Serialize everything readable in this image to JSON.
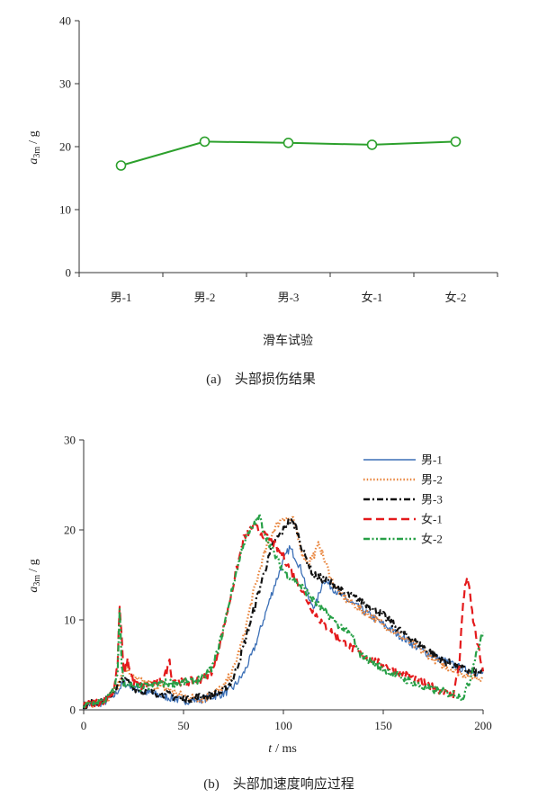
{
  "chart_data": [
    {
      "type": "line",
      "caption": "(a)　头部损伤结果",
      "xlabel": "滑车试验",
      "ylabel_main": "a",
      "ylabel_sub": "3m",
      "ylabel_unit": "/ g",
      "categories": [
        "男-1",
        "男-2",
        "男-3",
        "女-1",
        "女-2"
      ],
      "series": [
        {
          "color": "#2ca02c",
          "values": [
            17.0,
            20.8,
            20.6,
            20.3,
            20.8
          ]
        }
      ],
      "ylim": [
        0,
        40
      ],
      "yticks": [
        "0",
        "10",
        "20",
        "30",
        "40"
      ],
      "grid": false
    },
    {
      "type": "line",
      "caption": "(b)　头部加速度响应过程",
      "xlabel_main": "t",
      "xlabel_unit": "/ ms",
      "ylabel_main": "a",
      "ylabel_sub": "3m",
      "ylabel_unit": "/ g",
      "xlim": [
        0,
        200
      ],
      "ylim": [
        0,
        30
      ],
      "xticks": [
        "0",
        "50",
        "100",
        "150",
        "200"
      ],
      "yticks": [
        "0",
        "10",
        "20",
        "30"
      ],
      "legend_position": "top-right",
      "grid": false,
      "series": [
        {
          "name": "男-1",
          "color": "#3b6fb6",
          "dash": "solid",
          "x": [
            0,
            10,
            15,
            20,
            25,
            30,
            40,
            50,
            60,
            70,
            75,
            80,
            85,
            90,
            95,
            100,
            103,
            106,
            110,
            113,
            116,
            120,
            125,
            130,
            140,
            150,
            160,
            170,
            180,
            190,
            200
          ],
          "y": [
            0.5,
            0.8,
            1.5,
            3.0,
            2.5,
            2.0,
            1.5,
            1.0,
            1.2,
            1.8,
            2.5,
            4.0,
            6.5,
            10.0,
            13.5,
            16.5,
            18.0,
            17.0,
            15.0,
            12.0,
            11.5,
            14.5,
            13.5,
            12.5,
            11.0,
            9.5,
            8.0,
            6.5,
            5.5,
            4.5,
            4.0
          ]
        },
        {
          "name": "男-2",
          "color": "#e8833a",
          "dash": "dotted",
          "x": [
            0,
            10,
            15,
            18,
            20,
            25,
            30,
            40,
            50,
            60,
            70,
            75,
            80,
            85,
            90,
            95,
            100,
            105,
            110,
            113,
            116,
            118,
            120,
            125,
            130,
            140,
            150,
            160,
            170,
            180,
            190,
            200
          ],
          "y": [
            0.5,
            1.0,
            2.0,
            3.0,
            5.0,
            3.5,
            3.0,
            2.5,
            1.5,
            1.2,
            2.5,
            4.5,
            8.0,
            13.0,
            17.0,
            20.0,
            21.5,
            21.0,
            17.0,
            16.5,
            17.5,
            18.5,
            17.0,
            14.0,
            12.5,
            11.0,
            9.5,
            8.0,
            6.5,
            5.0,
            4.0,
            3.5
          ]
        },
        {
          "name": "男-3",
          "color": "#111111",
          "dash": "dashdot",
          "x": [
            0,
            10,
            15,
            20,
            25,
            30,
            40,
            50,
            60,
            70,
            75,
            80,
            85,
            90,
            95,
            100,
            103,
            106,
            110,
            115,
            120,
            125,
            130,
            140,
            150,
            160,
            170,
            180,
            190,
            200
          ],
          "y": [
            0.5,
            1.0,
            2.0,
            3.5,
            2.5,
            2.0,
            1.8,
            1.2,
            1.5,
            2.0,
            3.5,
            7.0,
            11.0,
            15.0,
            18.5,
            20.0,
            21.0,
            20.5,
            17.5,
            15.0,
            14.5,
            14.0,
            13.0,
            12.0,
            10.5,
            8.5,
            7.0,
            5.5,
            4.5,
            4.0
          ]
        },
        {
          "name": "女-1",
          "color": "#e41a1c",
          "dash": "dashed",
          "x": [
            0,
            10,
            15,
            17,
            18,
            19,
            20,
            22,
            25,
            30,
            35,
            40,
            42,
            43,
            44,
            50,
            60,
            65,
            70,
            75,
            80,
            85,
            90,
            95,
            100,
            105,
            110,
            115,
            120,
            130,
            140,
            150,
            160,
            170,
            180,
            185,
            188,
            190,
            192,
            195,
            200
          ],
          "y": [
            0.5,
            1.0,
            2.0,
            5.0,
            11.5,
            8.0,
            4.0,
            5.5,
            3.0,
            2.5,
            3.0,
            3.5,
            4.5,
            6.0,
            3.5,
            3.0,
            3.5,
            4.5,
            9.0,
            14.0,
            19.0,
            20.5,
            19.5,
            18.5,
            17.0,
            15.0,
            13.0,
            11.0,
            9.5,
            7.5,
            6.0,
            5.0,
            4.0,
            3.0,
            2.0,
            1.5,
            5.0,
            12.0,
            15.0,
            10.0,
            4.0
          ]
        },
        {
          "name": "女-2",
          "color": "#27a047",
          "dash": "dashdotdot",
          "x": [
            0,
            10,
            15,
            17,
            18,
            19,
            20,
            25,
            30,
            40,
            50,
            60,
            65,
            70,
            75,
            80,
            85,
            88,
            90,
            95,
            100,
            105,
            110,
            120,
            130,
            135,
            137,
            140,
            150,
            160,
            170,
            180,
            190,
            193,
            196,
            200
          ],
          "y": [
            0.5,
            1.0,
            2.0,
            4.0,
            11.5,
            5.0,
            3.0,
            2.5,
            2.5,
            3.0,
            3.0,
            3.5,
            5.0,
            9.0,
            14.0,
            18.5,
            20.5,
            21.5,
            20.0,
            17.5,
            15.5,
            14.5,
            13.5,
            11.0,
            9.0,
            8.0,
            6.5,
            6.0,
            4.5,
            3.5,
            2.5,
            2.0,
            1.5,
            3.0,
            6.0,
            8.5
          ]
        }
      ]
    }
  ]
}
